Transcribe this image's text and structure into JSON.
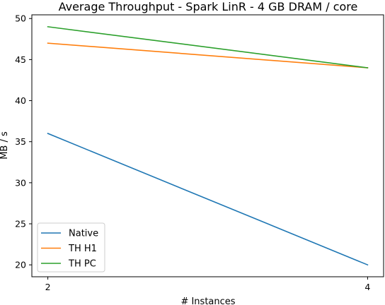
{
  "chart_data": {
    "type": "line",
    "title": "Average Throughput - Spark LinR - 4 GB DRAM / core",
    "xlabel": "# Instances",
    "ylabel": "MB / s",
    "x": [
      2,
      4
    ],
    "xticks": [
      2,
      4
    ],
    "yticks": [
      20,
      25,
      30,
      35,
      40,
      45,
      50
    ],
    "xlim": [
      1.9,
      4.1
    ],
    "ylim": [
      18.55,
      50.45
    ],
    "grid": false,
    "legend_position": "lower-left",
    "series": [
      {
        "name": "Native",
        "color": "#1f77b4",
        "values": [
          36,
          20
        ]
      },
      {
        "name": "TH H1",
        "color": "#ff7f0e",
        "values": [
          47,
          44
        ]
      },
      {
        "name": "TH PC",
        "color": "#2ca02c",
        "values": [
          49,
          44
        ]
      }
    ]
  }
}
